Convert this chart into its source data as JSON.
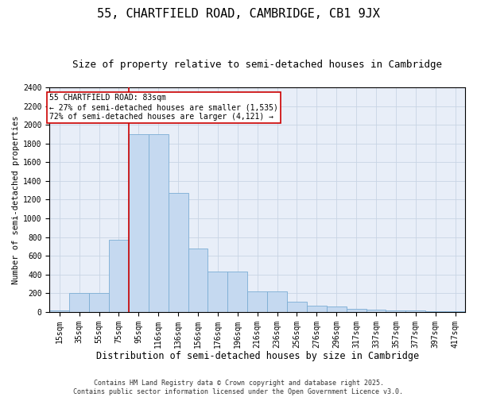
{
  "title1": "55, CHARTFIELD ROAD, CAMBRIDGE, CB1 9JX",
  "title2": "Size of property relative to semi-detached houses in Cambridge",
  "xlabel": "Distribution of semi-detached houses by size in Cambridge",
  "ylabel": "Number of semi-detached properties",
  "categories": [
    "15sqm",
    "35sqm",
    "55sqm",
    "75sqm",
    "95sqm",
    "116sqm",
    "136sqm",
    "156sqm",
    "176sqm",
    "196sqm",
    "216sqm",
    "236sqm",
    "256sqm",
    "276sqm",
    "296sqm",
    "317sqm",
    "337sqm",
    "357sqm",
    "377sqm",
    "397sqm",
    "417sqm"
  ],
  "values": [
    20,
    200,
    200,
    775,
    1900,
    1900,
    1270,
    680,
    430,
    430,
    220,
    220,
    110,
    65,
    60,
    30,
    25,
    15,
    12,
    8,
    5
  ],
  "bar_color": "#c5d9f0",
  "bar_edge_color": "#7badd4",
  "vline_x": 3.5,
  "vline_color": "#cc0000",
  "annotation_text_line1": "55 CHARTFIELD ROAD: 83sqm",
  "annotation_text_line2": "← 27% of semi-detached houses are smaller (1,535)",
  "annotation_text_line3": "72% of semi-detached houses are larger (4,121) →",
  "box_color": "#cc0000",
  "ylim": [
    0,
    2400
  ],
  "yticks": [
    0,
    200,
    400,
    600,
    800,
    1000,
    1200,
    1400,
    1600,
    1800,
    2000,
    2200,
    2400
  ],
  "grid_color": "#c8d4e4",
  "bg_color": "#e8eef8",
  "footnote": "Contains HM Land Registry data © Crown copyright and database right 2025.\nContains public sector information licensed under the Open Government Licence v3.0.",
  "title1_fontsize": 11,
  "title2_fontsize": 9,
  "xlabel_fontsize": 8.5,
  "ylabel_fontsize": 7.5,
  "tick_fontsize": 7,
  "annot_fontsize": 7,
  "footnote_fontsize": 6
}
